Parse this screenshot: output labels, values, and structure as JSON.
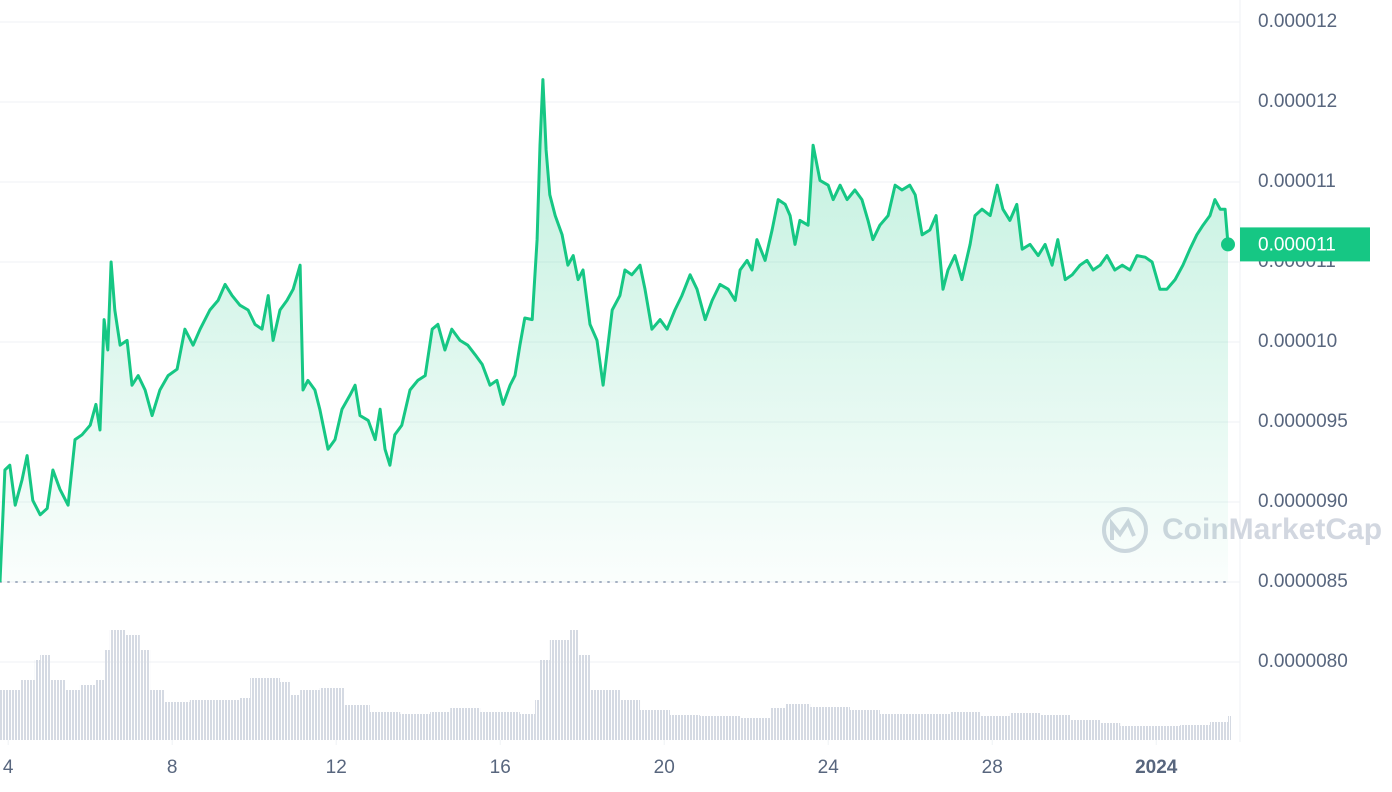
{
  "chart_data": {
    "type": "line",
    "xlim": [
      3.8,
      33.75
    ],
    "xticks": [
      4,
      8,
      12,
      16,
      20,
      24,
      28,
      {
        "value": 32,
        "label": "2024"
      }
    ],
    "ylim": [
      7.5125e-06,
      1.21375e-05
    ],
    "yticks": [
      {
        "value": 8e-06,
        "label": "0.0000080"
      },
      8.5e-06,
      {
        "value": 9e-06,
        "label": "0.0000090"
      },
      9.5e-06,
      {
        "value": 1e-05,
        "label": "0.000010"
      },
      {
        "value": 1.05e-05,
        "label": "0.000011"
      },
      1.1e-05,
      {
        "value": 1.15e-05,
        "label": "0.000012"
      },
      1.2e-05
    ],
    "y2lim": [
      0,
      120
    ],
    "grid": true,
    "current_price": {
      "value": 1.061e-05,
      "label": "0.000011"
    },
    "watermark": "CoinMarketCap",
    "series": [
      {
        "color": "#16c784",
        "x": [
          3.8,
          3.92,
          4.04,
          4.17,
          4.34,
          4.46,
          4.6,
          4.78,
          4.95,
          5.09,
          5.26,
          5.46,
          5.63,
          5.8,
          6.0,
          6.14,
          6.24,
          6.34,
          6.43,
          6.51,
          6.6,
          6.73,
          6.9,
          7.02,
          7.17,
          7.34,
          7.51,
          7.7,
          7.9,
          8.12,
          8.31,
          8.51,
          8.68,
          8.92,
          9.12,
          9.29,
          9.46,
          9.65,
          9.85,
          10.02,
          10.19,
          10.34,
          10.46,
          10.63,
          10.8,
          10.95,
          11.12,
          11.19,
          11.31,
          11.48,
          11.6,
          11.8,
          11.97,
          12.14,
          12.34,
          12.46,
          12.58,
          12.78,
          12.95,
          13.07,
          13.19,
          13.31,
          13.43,
          13.6,
          13.8,
          13.99,
          14.17,
          14.34,
          14.48,
          14.65,
          14.82,
          15.02,
          15.21,
          15.39,
          15.56,
          15.75,
          15.92,
          16.07,
          16.24,
          16.36,
          16.48,
          16.6,
          16.78,
          16.9,
          16.97,
          17.04,
          17.12,
          17.21,
          17.34,
          17.51,
          17.65,
          17.78,
          17.9,
          18.02,
          18.19,
          18.36,
          18.51,
          18.6,
          18.73,
          18.92,
          19.04,
          19.21,
          19.41,
          19.53,
          19.7,
          19.9,
          20.07,
          20.26,
          20.43,
          20.63,
          20.8,
          21.0,
          21.17,
          21.36,
          21.56,
          21.73,
          21.85,
          22.02,
          22.14,
          22.26,
          22.46,
          22.63,
          22.78,
          22.95,
          23.07,
          23.19,
          23.31,
          23.51,
          23.63,
          23.8,
          24.0,
          24.12,
          24.29,
          24.46,
          24.65,
          24.82,
          24.97,
          25.09,
          25.26,
          25.46,
          25.63,
          25.8,
          25.99,
          26.12,
          26.29,
          26.48,
          26.63,
          26.8,
          26.92,
          27.09,
          27.26,
          27.46,
          27.58,
          27.75,
          27.95,
          28.12,
          28.26,
          28.43,
          28.6,
          28.73,
          28.92,
          29.12,
          29.29,
          29.46,
          29.6,
          29.78,
          29.95,
          30.14,
          30.31,
          30.46,
          30.63,
          30.8,
          30.99,
          31.17,
          31.36,
          31.53,
          31.73,
          31.9,
          32.09,
          32.26,
          32.46,
          32.65,
          32.82,
          32.99,
          33.14,
          33.31,
          33.43,
          33.56,
          33.68,
          33.75
        ],
        "values": [
          8.5e-06,
          9.2e-06,
          9.23e-06,
          8.98e-06,
          9.14e-06,
          9.29e-06,
          9.01e-06,
          8.92e-06,
          8.96e-06,
          9.2e-06,
          9.08e-06,
          8.98e-06,
          9.39e-06,
          9.42e-06,
          9.48e-06,
          9.61e-06,
          9.45e-06,
          1.014e-05,
          9.95e-06,
          1.05e-05,
          1.02e-05,
          9.98e-06,
          1.001e-05,
          9.73e-06,
          9.79e-06,
          9.7e-06,
          9.54e-06,
          9.7e-06,
          9.79e-06,
          9.83e-06,
          1.008e-05,
          9.98e-06,
          1.008e-05,
          1.02e-05,
          1.026e-05,
          1.036e-05,
          1.029e-05,
          1.023e-05,
          1.02e-05,
          1.011e-05,
          1.008e-05,
          1.029e-05,
          1.001e-05,
          1.02e-05,
          1.026e-05,
          1.033e-05,
          1.048e-05,
          9.7e-06,
          9.76e-06,
          9.7e-06,
          9.58e-06,
          9.33e-06,
          9.39e-06,
          9.58e-06,
          9.67e-06,
          9.73e-06,
          9.54e-06,
          9.51e-06,
          9.39e-06,
          9.58e-06,
          9.33e-06,
          9.23e-06,
          9.42e-06,
          9.48e-06,
          9.7e-06,
          9.76e-06,
          9.79e-06,
          1.008e-05,
          1.011e-05,
          9.95e-06,
          1.008e-05,
          1.001e-05,
          9.98e-06,
          9.92e-06,
          9.86e-06,
          9.73e-06,
          9.76e-06,
          9.61e-06,
          9.73e-06,
          9.79e-06,
          9.98e-06,
          1.015e-05,
          1.014e-05,
          1.064e-05,
          1.123e-05,
          1.164e-05,
          1.12e-05,
          1.092e-05,
          1.079e-05,
          1.067e-05,
          1.048e-05,
          1.054e-05,
          1.039e-05,
          1.045e-05,
          1.011e-05,
          1.001e-05,
          9.73e-06,
          9.92e-06,
          1.02e-05,
          1.029e-05,
          1.045e-05,
          1.042e-05,
          1.048e-05,
          1.033e-05,
          1.008e-05,
          1.014e-05,
          1.008e-05,
          1.02e-05,
          1.029e-05,
          1.042e-05,
          1.033e-05,
          1.014e-05,
          1.026e-05,
          1.036e-05,
          1.033e-05,
          1.026e-05,
          1.045e-05,
          1.051e-05,
          1.045e-05,
          1.064e-05,
          1.051e-05,
          1.07e-05,
          1.089e-05,
          1.086e-05,
          1.079e-05,
          1.061e-05,
          1.076e-05,
          1.073e-05,
          1.123e-05,
          1.101e-05,
          1.098e-05,
          1.089e-05,
          1.098e-05,
          1.089e-05,
          1.095e-05,
          1.089e-05,
          1.076e-05,
          1.064e-05,
          1.073e-05,
          1.079e-05,
          1.098e-05,
          1.095e-05,
          1.098e-05,
          1.092e-05,
          1.067e-05,
          1.07e-05,
          1.079e-05,
          1.033e-05,
          1.045e-05,
          1.054e-05,
          1.039e-05,
          1.061e-05,
          1.079e-05,
          1.083e-05,
          1.079e-05,
          1.098e-05,
          1.083e-05,
          1.076e-05,
          1.086e-05,
          1.058e-05,
          1.061e-05,
          1.054e-05,
          1.061e-05,
          1.048e-05,
          1.064e-05,
          1.039e-05,
          1.042e-05,
          1.048e-05,
          1.051e-05,
          1.045e-05,
          1.048e-05,
          1.054e-05,
          1.045e-05,
          1.048e-05,
          1.045e-05,
          1.054e-05,
          1.053e-05,
          1.05e-05,
          1.033e-05,
          1.033e-05,
          1.039e-05,
          1.048e-05,
          1.058e-05,
          1.067e-05,
          1.073e-05,
          1.079e-05,
          1.089e-05,
          1.083e-05,
          1.083e-05,
          1.061e-05
        ]
      },
      {
        "color": "#d5dae3",
        "axis": "y2",
        "x": [
          3.8,
          4.29,
          4.65,
          4.78,
          5.02,
          5.39,
          5.75,
          6.12,
          6.36,
          6.48,
          6.85,
          7.21,
          7.46,
          7.82,
          8.43,
          9.04,
          9.65,
          9.9,
          10.63,
          10.87,
          11.12,
          11.6,
          11.97,
          12.21,
          12.82,
          13.56,
          14.29,
          14.78,
          15.51,
          16.48,
          16.85,
          16.97,
          17.21,
          17.7,
          17.9,
          18.19,
          18.92,
          19.41,
          20.14,
          20.87,
          21.85,
          22.58,
          22.95,
          23.56,
          24.53,
          25.26,
          26.24,
          26.97,
          27.7,
          28.43,
          29.17,
          29.9,
          30.63,
          31.12,
          31.85,
          32.58,
          33.31,
          33.75
        ],
        "values": [
          50,
          60,
          80,
          85,
          60,
          50,
          55,
          60,
          90,
          110,
          105,
          90,
          50,
          38,
          40,
          40,
          42,
          62,
          58,
          45,
          50,
          52,
          52,
          35,
          28,
          26,
          28,
          32,
          28,
          26,
          40,
          80,
          100,
          110,
          85,
          50,
          40,
          30,
          25,
          24,
          22,
          32,
          36,
          33,
          30,
          26,
          26,
          28,
          24,
          27,
          25,
          20,
          17,
          14,
          14,
          15,
          18,
          24
        ]
      }
    ]
  }
}
